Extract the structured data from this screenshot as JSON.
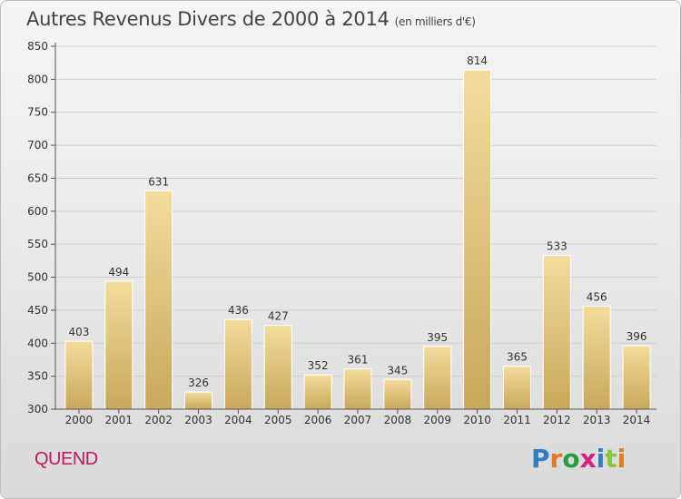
{
  "header": {
    "title": "Autres Revenus Divers de 2000 à 2014",
    "unit": "(en milliers d'€)"
  },
  "footer": {
    "commune": "QUEND",
    "brand": "Proxiti",
    "brand_colors": [
      "#2f7fc1",
      "#e07b1f",
      "#2a9a3e",
      "#d6217a",
      "#2f7fc1",
      "#8bc53f",
      "#e07b1f"
    ]
  },
  "colors": {
    "bar_top": "#f4dc9c",
    "bar_bottom": "#c8a85a",
    "grid": "#cfcfcf",
    "axis": "#555555",
    "text": "#333333"
  },
  "chart_data": {
    "type": "bar",
    "title": "Autres Revenus Divers de 2000 à 2014",
    "subtitle": "(en milliers d'€)",
    "categories": [
      "2000",
      "2001",
      "2002",
      "2003",
      "2004",
      "2005",
      "2006",
      "2007",
      "2008",
      "2009",
      "2010",
      "2011",
      "2012",
      "2013",
      "2014"
    ],
    "values": [
      403,
      494,
      631,
      326,
      436,
      427,
      352,
      361,
      345,
      395,
      814,
      365,
      533,
      456,
      396
    ],
    "ylim": [
      300,
      850
    ],
    "yticks": [
      300,
      350,
      400,
      450,
      500,
      550,
      600,
      650,
      700,
      750,
      800,
      850
    ],
    "grid": true,
    "xlabel": "",
    "ylabel": ""
  }
}
